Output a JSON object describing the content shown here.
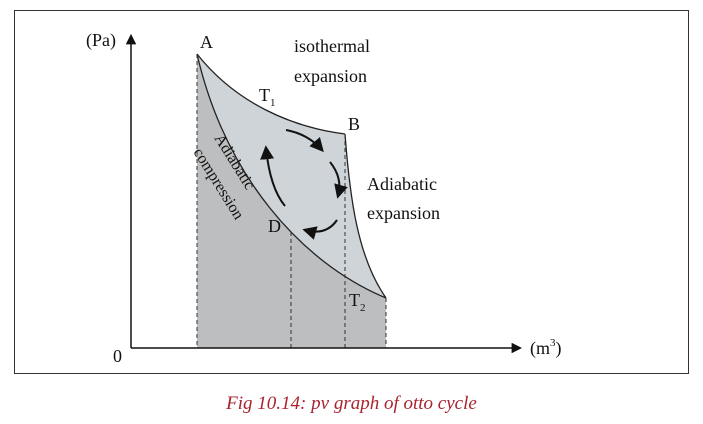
{
  "axes": {
    "y_unit": "(Pa)",
    "x_unit_base": "(m",
    "x_unit_exp": "3",
    "x_unit_close": ")",
    "origin": "0"
  },
  "points": {
    "a": "A",
    "b": "B",
    "d": "D"
  },
  "temperatures": {
    "t1_base": "T",
    "t1_sub": "1",
    "t2_base": "T",
    "t2_sub": "2"
  },
  "processes": {
    "isothermal_line1": "isothermal",
    "isothermal_line2": "expansion",
    "adiabatic_exp_line1": "Adiabatic",
    "adiabatic_exp_line2": "expansion",
    "adiabatic_comp_line1": "Adiabatic",
    "adiabatic_comp_line2": "compression"
  },
  "caption": "Fig 10.14: pv graph of otto cycle",
  "colors": {
    "under_curve_fill": "#bdbec0",
    "cycle_fill": "#cfd4d8",
    "caption_color": "#a8232e"
  }
}
